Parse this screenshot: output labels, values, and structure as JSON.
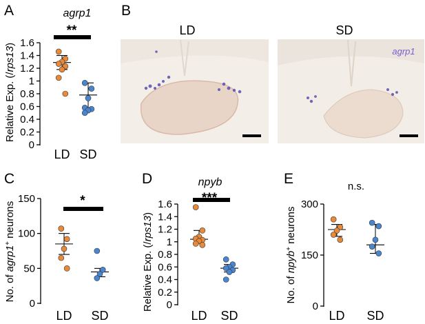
{
  "colors": {
    "LD": "#e9893a",
    "SD": "#4a86d0",
    "axis": "#000000",
    "tissue_bg": "#f1ebe4",
    "stain": "#5a4fb0"
  },
  "panels": {
    "A": {
      "letter": "A",
      "gene": "agrp1",
      "sig": "**",
      "ylabel_pre": "Relative Exp. (/",
      "ylabel_gene": "rps13",
      "ylabel_post": ")"
    },
    "B": {
      "letter": "B",
      "ld_label": "LD",
      "sd_label": "SD",
      "gene_tag": "agrp1"
    },
    "C": {
      "letter": "C",
      "sig": "*",
      "ylabel_pre": "No. of ",
      "ylabel_gene": "agrp1",
      "ylabel_sup": "+",
      "ylabel_post": " neurons"
    },
    "D": {
      "letter": "D",
      "gene": "npyb",
      "sig": "***",
      "ylabel_pre": "Relative Exp. (/",
      "ylabel_gene": "rps13",
      "ylabel_post": ")"
    },
    "E": {
      "letter": "E",
      "sig": "n.s.",
      "ylabel_pre": "No. of ",
      "ylabel_gene": "npyb",
      "ylabel_sup": "+",
      "ylabel_post": " neurons"
    }
  },
  "chart_data": [
    {
      "id": "A",
      "type": "scatter",
      "categories": [
        "LD",
        "SD"
      ],
      "ylim": [
        0,
        1.6
      ],
      "yticks": [
        0,
        0.2,
        0.4,
        0.6,
        0.8,
        1,
        1.2,
        1.4,
        1.6
      ],
      "ytick_labels": [
        "0",
        "0.2",
        "0.4",
        "0.6",
        "0.8",
        "1",
        "1.2",
        "1.4",
        "1.6"
      ],
      "series": [
        {
          "category": "LD",
          "values": [
            1.46,
            1.35,
            1.3,
            1.27,
            1.23,
            1.18,
            1.05,
            0.8
          ],
          "bar_mid": 1.29,
          "bar_low": 1.18,
          "bar_high": 1.4
        },
        {
          "category": "SD",
          "values": [
            0.97,
            0.88,
            0.73,
            0.58,
            0.56,
            0.54,
            0.5
          ],
          "bar_mid": 0.78,
          "bar_low": 0.58,
          "bar_high": 0.97
        }
      ],
      "significance": "**"
    },
    {
      "id": "C",
      "type": "scatter",
      "categories": [
        "LD",
        "SD"
      ],
      "ylim": [
        0,
        150
      ],
      "yticks": [
        0,
        50,
        100,
        150
      ],
      "ytick_labels": [
        "0",
        "50",
        "100",
        "150"
      ],
      "series": [
        {
          "category": "LD",
          "values": [
            107,
            92,
            78,
            65,
            50
          ],
          "bar_mid": 85,
          "bar_low": 70,
          "bar_high": 100
        },
        {
          "category": "SD",
          "values": [
            75,
            48,
            42,
            36
          ],
          "bar_mid": 45,
          "bar_low": 38,
          "bar_high": 50
        }
      ],
      "significance": "*"
    },
    {
      "id": "D",
      "type": "scatter",
      "categories": [
        "LD",
        "SD"
      ],
      "ylim": [
        0,
        1.6
      ],
      "yticks": [
        0,
        0.2,
        0.4,
        0.6,
        0.8,
        1,
        1.2,
        1.4,
        1.6
      ],
      "ytick_labels": [
        "0",
        "0.2",
        "0.4",
        "0.6",
        "0.8",
        "1",
        "1.2",
        "1.4",
        "1.6"
      ],
      "series": [
        {
          "category": "LD",
          "values": [
            1.55,
            1.18,
            1.08,
            1.05,
            1.03,
            1.01,
            0.97,
            0.95
          ],
          "bar_mid": 1.04,
          "bar_low": 0.97,
          "bar_high": 1.18
        },
        {
          "category": "SD",
          "values": [
            0.72,
            0.64,
            0.6,
            0.58,
            0.55,
            0.52,
            0.4
          ],
          "bar_mid": 0.58,
          "bar_low": 0.52,
          "bar_high": 0.64
        }
      ],
      "significance": "***"
    },
    {
      "id": "E",
      "type": "scatter",
      "categories": [
        "LD",
        "SD"
      ],
      "ylim": [
        0,
        300
      ],
      "yticks": [
        0,
        150,
        300
      ],
      "ytick_labels": [
        "0",
        "150",
        "300"
      ],
      "series": [
        {
          "category": "LD",
          "values": [
            255,
            232,
            222,
            210,
            195
          ],
          "bar_mid": 225,
          "bar_low": 205,
          "bar_high": 240
        },
        {
          "category": "SD",
          "values": [
            245,
            235,
            195,
            175,
            155
          ],
          "bar_mid": 180,
          "bar_low": 155,
          "bar_high": 240
        }
      ],
      "significance": "n.s."
    }
  ]
}
